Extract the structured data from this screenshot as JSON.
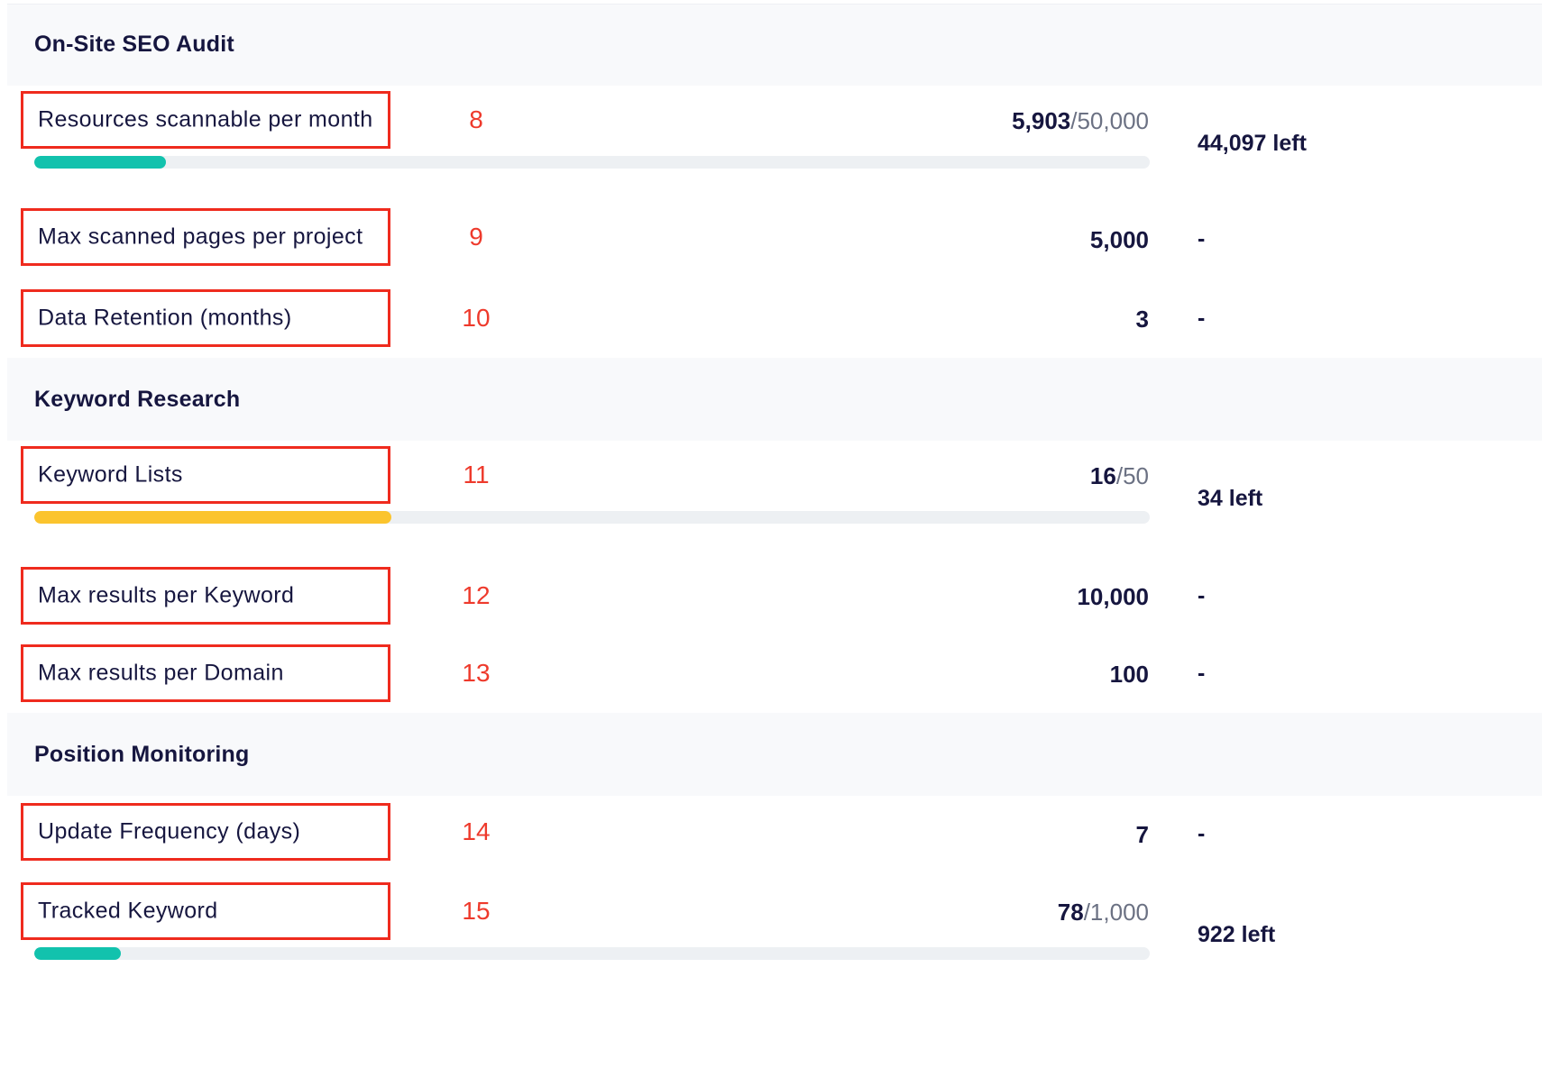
{
  "sections": [
    {
      "title": "On-Site SEO Audit",
      "rows": [
        {
          "label": "Resources scannable per month",
          "annotation": "8",
          "used": "5,903",
          "total": "/50,000",
          "remaining": "44,097 left",
          "progress": 0.118,
          "bar_color": "#12c2ad"
        },
        {
          "label": "Max scanned pages per project",
          "annotation": "9",
          "used": "5,000",
          "total": "",
          "remaining": "-"
        },
        {
          "label": "Data Retention (months)",
          "annotation": "10",
          "used": "3",
          "total": "",
          "remaining": "-"
        }
      ]
    },
    {
      "title": "Keyword Research",
      "rows": [
        {
          "label": "Keyword Lists",
          "annotation": "11",
          "used": "16",
          "total": "/50",
          "remaining": "34 left",
          "progress": 0.32,
          "bar_color": "#fbc42e"
        },
        {
          "label": "Max results per Keyword",
          "annotation": "12",
          "used": "10,000",
          "total": "",
          "remaining": "-"
        },
        {
          "label": "Max results per Domain",
          "annotation": "13",
          "used": "100",
          "total": "",
          "remaining": "-"
        }
      ]
    },
    {
      "title": "Position Monitoring",
      "rows": [
        {
          "label": "Update Frequency (days)",
          "annotation": "14",
          "used": "7",
          "total": "",
          "remaining": "-"
        },
        {
          "label": "Tracked Keyword",
          "annotation": "15",
          "used": "78",
          "total": "/1,000",
          "remaining": "922 left",
          "progress": 0.078,
          "bar_color": "#12c2ad"
        }
      ]
    }
  ],
  "colors": {
    "annotation_box": "#ef2b1e",
    "annotation_number": "#ee3a2c",
    "text_primary": "#16163f",
    "text_muted": "#6b7183",
    "section_bg": "#f8f9fb",
    "track": "#edf0f3"
  }
}
